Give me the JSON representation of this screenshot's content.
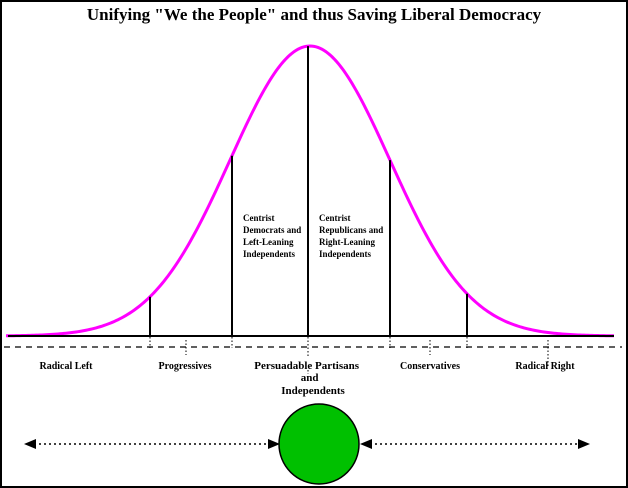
{
  "title": "Unifying \"We the People\" and thus Saving Liberal Democracy",
  "colors": {
    "curve": "#ff00ff",
    "circle": "#00c000",
    "lines": "#000000"
  },
  "inner_labels": {
    "left": [
      "Centrist",
      "Democrats and",
      "Left-Leaning",
      "Independents"
    ],
    "right": [
      "Centrist",
      "Republicans and",
      "Right-Leaning",
      "Independents"
    ]
  },
  "segments": {
    "radical_left": "Radical Left",
    "progressives": "Progressives",
    "persuadable": [
      "Persuadable Partisans",
      "and",
      "Independents"
    ],
    "conservatives": "Conservatives",
    "radical_right": "Radical Right"
  }
}
